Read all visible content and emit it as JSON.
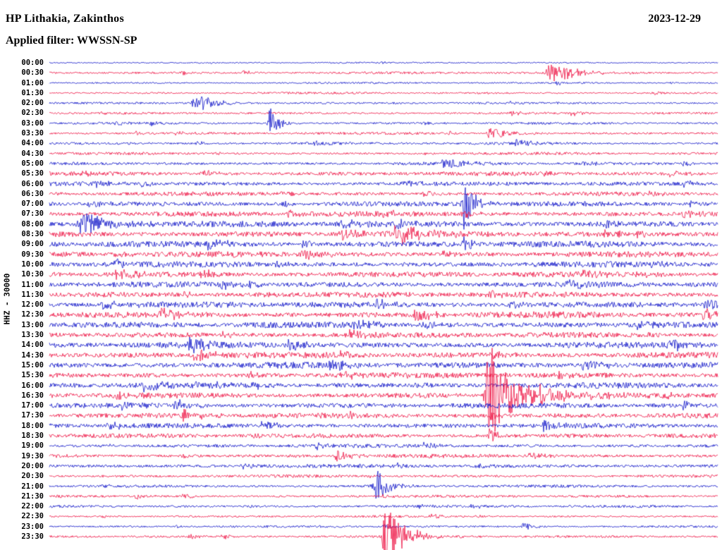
{
  "header": {
    "station": "HP Lithakia, Zakinthos",
    "date": "2023-12-29",
    "filter_line": "Applied filter: WWSSN-SP"
  },
  "axis": {
    "left_label": "HHZ - 30000"
  },
  "colors": {
    "blue": "#0f14c8",
    "red": "#ee1243",
    "text": "#000000",
    "background": "#ffffff"
  },
  "chart_data": {
    "type": "line",
    "subtype": "helicorder-seismogram",
    "title": "HP Lithakia, Zakinthos",
    "date": "2023-12-29",
    "filter": "WWSSN-SP",
    "channel_scale_label": "HHZ - 30000",
    "row_duration_minutes": 30,
    "trace_color_cycle": [
      "blue",
      "red"
    ],
    "grid": false,
    "legend": "none",
    "notes": "48 half-hour traces, 00:00 through 23:30; amplitude in arbitrary counts; events encoded as [position_fraction, amplitude_px, width_px]",
    "rows": [
      {
        "t": "00:00",
        "color": "blue",
        "noise": 0.8,
        "events": [
          [
            0.24,
            2,
            5
          ],
          [
            0.5,
            1.5,
            4
          ]
        ]
      },
      {
        "t": "00:30",
        "color": "red",
        "noise": 1.2,
        "events": [
          [
            0.2,
            3,
            8
          ],
          [
            0.29,
            3,
            7
          ],
          [
            0.75,
            16,
            14
          ],
          [
            0.86,
            2,
            7
          ]
        ]
      },
      {
        "t": "01:00",
        "color": "blue",
        "noise": 0.9,
        "events": [
          [
            0.76,
            3,
            8
          ],
          [
            0.93,
            2,
            5
          ]
        ]
      },
      {
        "t": "01:30",
        "color": "red",
        "noise": 1.0,
        "events": [
          [
            0.64,
            2,
            6
          ],
          [
            0.9,
            3,
            7
          ]
        ]
      },
      {
        "t": "02:00",
        "color": "blue",
        "noise": 1.1,
        "events": [
          [
            0.22,
            14,
            12
          ],
          [
            0.69,
            2,
            6
          ]
        ]
      },
      {
        "t": "02:30",
        "color": "red",
        "noise": 1.1,
        "events": [
          [
            0.08,
            2,
            6
          ],
          [
            0.69,
            4,
            8
          ],
          [
            0.78,
            4,
            8
          ]
        ]
      },
      {
        "t": "03:00",
        "color": "blue",
        "noise": 1.2,
        "events": [
          [
            0.1,
            3,
            6
          ],
          [
            0.15,
            3,
            6
          ],
          [
            0.33,
            25,
            5
          ],
          [
            0.56,
            3,
            7
          ]
        ]
      },
      {
        "t": "03:30",
        "color": "red",
        "noise": 1.3,
        "events": [
          [
            0.13,
            3,
            6
          ],
          [
            0.19,
            3,
            6
          ],
          [
            0.6,
            3,
            7
          ],
          [
            0.66,
            9,
            11
          ]
        ]
      },
      {
        "t": "04:00",
        "color": "blue",
        "noise": 1.3,
        "events": [
          [
            0.22,
            3,
            6
          ],
          [
            0.4,
            4,
            8
          ],
          [
            0.7,
            7,
            9
          ]
        ]
      },
      {
        "t": "04:30",
        "color": "red",
        "noise": 1.3,
        "events": [
          [
            0.25,
            3,
            7
          ],
          [
            0.56,
            2,
            6
          ]
        ]
      },
      {
        "t": "05:00",
        "color": "blue",
        "noise": 1.6,
        "events": [
          [
            0.59,
            10,
            11
          ],
          [
            0.8,
            3,
            7
          ],
          [
            0.95,
            4,
            7
          ]
        ]
      },
      {
        "t": "05:30",
        "color": "red",
        "noise": 2.0,
        "events": [
          [
            0.05,
            3,
            7
          ],
          [
            0.23,
            5,
            9
          ],
          [
            0.74,
            4,
            9
          ],
          [
            0.93,
            5,
            9
          ]
        ]
      },
      {
        "t": "06:00",
        "color": "blue",
        "noise": 2.0,
        "events": [
          [
            0.07,
            5,
            8
          ],
          [
            0.14,
            5,
            8
          ],
          [
            0.53,
            6,
            9
          ],
          [
            0.95,
            5,
            8
          ]
        ]
      },
      {
        "t": "06:30",
        "color": "red",
        "noise": 2.0,
        "events": [
          [
            0.35,
            4,
            8
          ],
          [
            0.56,
            4,
            8
          ],
          [
            0.9,
            4,
            8
          ]
        ]
      },
      {
        "t": "07:00",
        "color": "blue",
        "noise": 2.4,
        "events": [
          [
            0.06,
            4,
            8
          ],
          [
            0.35,
            4,
            8
          ],
          [
            0.62,
            45,
            6
          ],
          [
            0.96,
            5,
            8
          ]
        ]
      },
      {
        "t": "07:30",
        "color": "red",
        "noise": 2.6,
        "events": [
          [
            0.36,
            6,
            9
          ],
          [
            0.5,
            5,
            9
          ],
          [
            0.62,
            6,
            8
          ],
          [
            0.95,
            6,
            9
          ]
        ]
      },
      {
        "t": "08:00",
        "color": "blue",
        "noise": 3.0,
        "events": [
          [
            0.05,
            17,
            16
          ],
          [
            0.44,
            8,
            11
          ],
          [
            0.52,
            6,
            9
          ],
          [
            0.83,
            5,
            8
          ]
        ]
      },
      {
        "t": "08:30",
        "color": "red",
        "noise": 3.0,
        "events": [
          [
            0.44,
            8,
            11
          ],
          [
            0.52,
            17,
            13
          ],
          [
            0.83,
            7,
            9
          ],
          [
            0.88,
            6,
            8
          ]
        ]
      },
      {
        "t": "09:00",
        "color": "blue",
        "noise": 3.0,
        "events": [
          [
            0.24,
            8,
            11
          ],
          [
            0.38,
            6,
            8
          ],
          [
            0.62,
            10,
            7
          ]
        ]
      },
      {
        "t": "09:30",
        "color": "red",
        "noise": 2.8,
        "events": [
          [
            0.1,
            5,
            8
          ],
          [
            0.38,
            8,
            11
          ],
          [
            0.59,
            5,
            8
          ]
        ]
      },
      {
        "t": "10:00",
        "color": "blue",
        "noise": 2.8,
        "events": [
          [
            0.1,
            6,
            9
          ],
          [
            0.34,
            5,
            8
          ],
          [
            0.9,
            5,
            8
          ]
        ]
      },
      {
        "t": "10:30",
        "color": "red",
        "noise": 2.8,
        "events": [
          [
            0.1,
            9,
            11
          ],
          [
            0.23,
            6,
            9
          ],
          [
            0.8,
            6,
            9
          ],
          [
            0.88,
            5,
            8
          ]
        ]
      },
      {
        "t": "11:00",
        "color": "blue",
        "noise": 2.8,
        "events": [
          [
            0.26,
            5,
            8
          ],
          [
            0.3,
            6,
            9
          ],
          [
            0.77,
            8,
            11
          ]
        ]
      },
      {
        "t": "11:30",
        "color": "red",
        "noise": 2.8,
        "events": [
          [
            0.2,
            5,
            8
          ],
          [
            0.3,
            5,
            8
          ],
          [
            0.66,
            5,
            8
          ]
        ]
      },
      {
        "t": "12:00",
        "color": "blue",
        "noise": 3.0,
        "events": [
          [
            0.08,
            7,
            9
          ],
          [
            0.49,
            7,
            9
          ],
          [
            0.69,
            5,
            8
          ],
          [
            0.98,
            8,
            9
          ]
        ]
      },
      {
        "t": "12:30",
        "color": "red",
        "noise": 3.0,
        "events": [
          [
            0.17,
            9,
            11
          ],
          [
            0.55,
            10,
            11
          ],
          [
            0.98,
            10,
            9
          ]
        ]
      },
      {
        "t": "13:00",
        "color": "blue",
        "noise": 3.0,
        "events": [
          [
            0.46,
            9,
            11
          ],
          [
            0.56,
            6,
            9
          ],
          [
            0.88,
            5,
            8
          ]
        ]
      },
      {
        "t": "13:30",
        "color": "red",
        "noise": 2.8,
        "events": [
          [
            0.26,
            5,
            8
          ],
          [
            0.45,
            6,
            9
          ],
          [
            0.9,
            5,
            8
          ]
        ]
      },
      {
        "t": "14:00",
        "color": "blue",
        "noise": 3.0,
        "events": [
          [
            0.21,
            10,
            11
          ],
          [
            0.36,
            8,
            10
          ],
          [
            0.93,
            9,
            10
          ]
        ]
      },
      {
        "t": "14:30",
        "color": "red",
        "noise": 3.0,
        "events": [
          [
            0.22,
            10,
            11
          ],
          [
            0.43,
            6,
            8
          ],
          [
            0.66,
            7,
            9
          ]
        ]
      },
      {
        "t": "15:00",
        "color": "blue",
        "noise": 3.0,
        "events": [
          [
            0.42,
            8,
            10
          ],
          [
            0.8,
            9,
            11
          ]
        ]
      },
      {
        "t": "15:30",
        "color": "red",
        "noise": 2.8,
        "events": [
          [
            0.3,
            5,
            8
          ],
          [
            0.44,
            6,
            8
          ],
          [
            0.76,
            5,
            8
          ]
        ]
      },
      {
        "t": "16:00",
        "color": "blue",
        "noise": 2.8,
        "events": [
          [
            0.14,
            8,
            10
          ],
          [
            0.22,
            7,
            9
          ],
          [
            0.3,
            6,
            8
          ],
          [
            0.55,
            5,
            8
          ]
        ]
      },
      {
        "t": "16:30",
        "color": "red",
        "noise": 2.8,
        "events": [
          [
            0.1,
            5,
            8
          ],
          [
            0.659,
            78,
            14
          ],
          [
            0.72,
            12,
            28
          ],
          [
            0.92,
            5,
            8
          ]
        ]
      },
      {
        "t": "17:00",
        "color": "blue",
        "noise": 2.6,
        "events": [
          [
            0.11,
            7,
            9
          ],
          [
            0.19,
            8,
            10
          ],
          [
            0.95,
            6,
            8
          ]
        ]
      },
      {
        "t": "17:30",
        "color": "red",
        "noise": 2.6,
        "events": [
          [
            0.2,
            9,
            11
          ],
          [
            0.45,
            5,
            8
          ],
          [
            0.66,
            8,
            6
          ]
        ]
      },
      {
        "t": "18:00",
        "color": "blue",
        "noise": 2.4,
        "events": [
          [
            0.09,
            6,
            8
          ],
          [
            0.32,
            7,
            9
          ],
          [
            0.74,
            10,
            11
          ]
        ]
      },
      {
        "t": "18:30",
        "color": "red",
        "noise": 2.2,
        "events": [
          [
            0.3,
            4,
            7
          ],
          [
            0.659,
            10,
            5
          ]
        ]
      },
      {
        "t": "19:00",
        "color": "blue",
        "noise": 1.8,
        "events": [
          [
            0.08,
            3,
            6
          ],
          [
            0.4,
            4,
            7
          ],
          [
            0.56,
            5,
            8
          ]
        ]
      },
      {
        "t": "19:30",
        "color": "red",
        "noise": 1.8,
        "events": [
          [
            0.2,
            3,
            6
          ],
          [
            0.43,
            8,
            9
          ],
          [
            0.72,
            6,
            8
          ]
        ]
      },
      {
        "t": "20:00",
        "color": "blue",
        "noise": 1.8,
        "events": [
          [
            0.29,
            5,
            8
          ],
          [
            0.52,
            4,
            6
          ],
          [
            0.64,
            4,
            7
          ]
        ]
      },
      {
        "t": "20:30",
        "color": "red",
        "noise": 1.4,
        "events": [
          [
            0.08,
            2,
            5
          ],
          [
            0.48,
            2,
            5
          ]
        ]
      },
      {
        "t": "21:00",
        "color": "blue",
        "noise": 1.4,
        "events": [
          [
            0.08,
            3,
            6
          ],
          [
            0.487,
            10,
            11
          ],
          [
            0.49,
            22,
            5
          ]
        ]
      },
      {
        "t": "21:30",
        "color": "red",
        "noise": 1.3,
        "events": [
          [
            0.13,
            4,
            7
          ],
          [
            0.2,
            4,
            7
          ],
          [
            0.5,
            3,
            5
          ]
        ]
      },
      {
        "t": "22:00",
        "color": "blue",
        "noise": 1.3,
        "events": [
          [
            0.3,
            3,
            6
          ],
          [
            0.55,
            3,
            6
          ],
          [
            0.63,
            3,
            6
          ]
        ]
      },
      {
        "t": "22:30",
        "color": "red",
        "noise": 1.1,
        "events": [
          [
            0.08,
            2,
            5
          ],
          [
            0.57,
            4,
            7
          ],
          [
            0.64,
            3,
            6
          ]
        ]
      },
      {
        "t": "23:00",
        "color": "blue",
        "noise": 1.1,
        "events": [
          [
            0.19,
            2,
            5
          ],
          [
            0.5,
            4,
            6
          ],
          [
            0.71,
            6,
            8
          ]
        ]
      },
      {
        "t": "23:30",
        "color": "red",
        "noise": 1.3,
        "events": [
          [
            0.21,
            4,
            7
          ],
          [
            0.26,
            4,
            7
          ],
          [
            0.503,
            55,
            8
          ],
          [
            0.51,
            18,
            14
          ]
        ]
      }
    ]
  }
}
